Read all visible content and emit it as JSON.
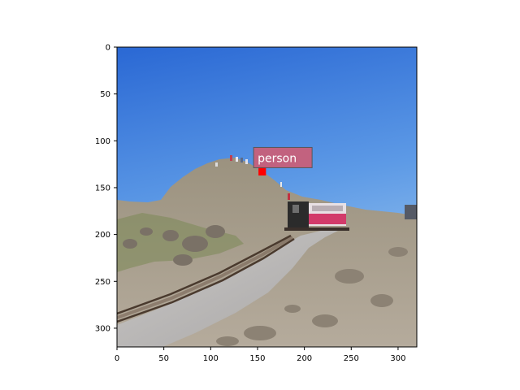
{
  "image_axes": {
    "x_ticks": [
      0,
      50,
      100,
      150,
      200,
      250,
      300
    ],
    "y_ticks": [
      0,
      50,
      100,
      150,
      200,
      250,
      300
    ],
    "xlim": [
      0,
      320
    ],
    "ylim": [
      320,
      0
    ]
  },
  "detection": {
    "label": "person",
    "label_color": "#c8607a",
    "box_color": "#ff0000",
    "box": {
      "x": 151,
      "y": 127,
      "w": 8,
      "h": 10
    }
  },
  "colors": {
    "sky_top": "#2d6ed8",
    "sky_bottom": "#8fc0ee",
    "rock": "#a99e8e",
    "train_car": "#d23a6a",
    "locomotive": "#2b2b2b"
  }
}
